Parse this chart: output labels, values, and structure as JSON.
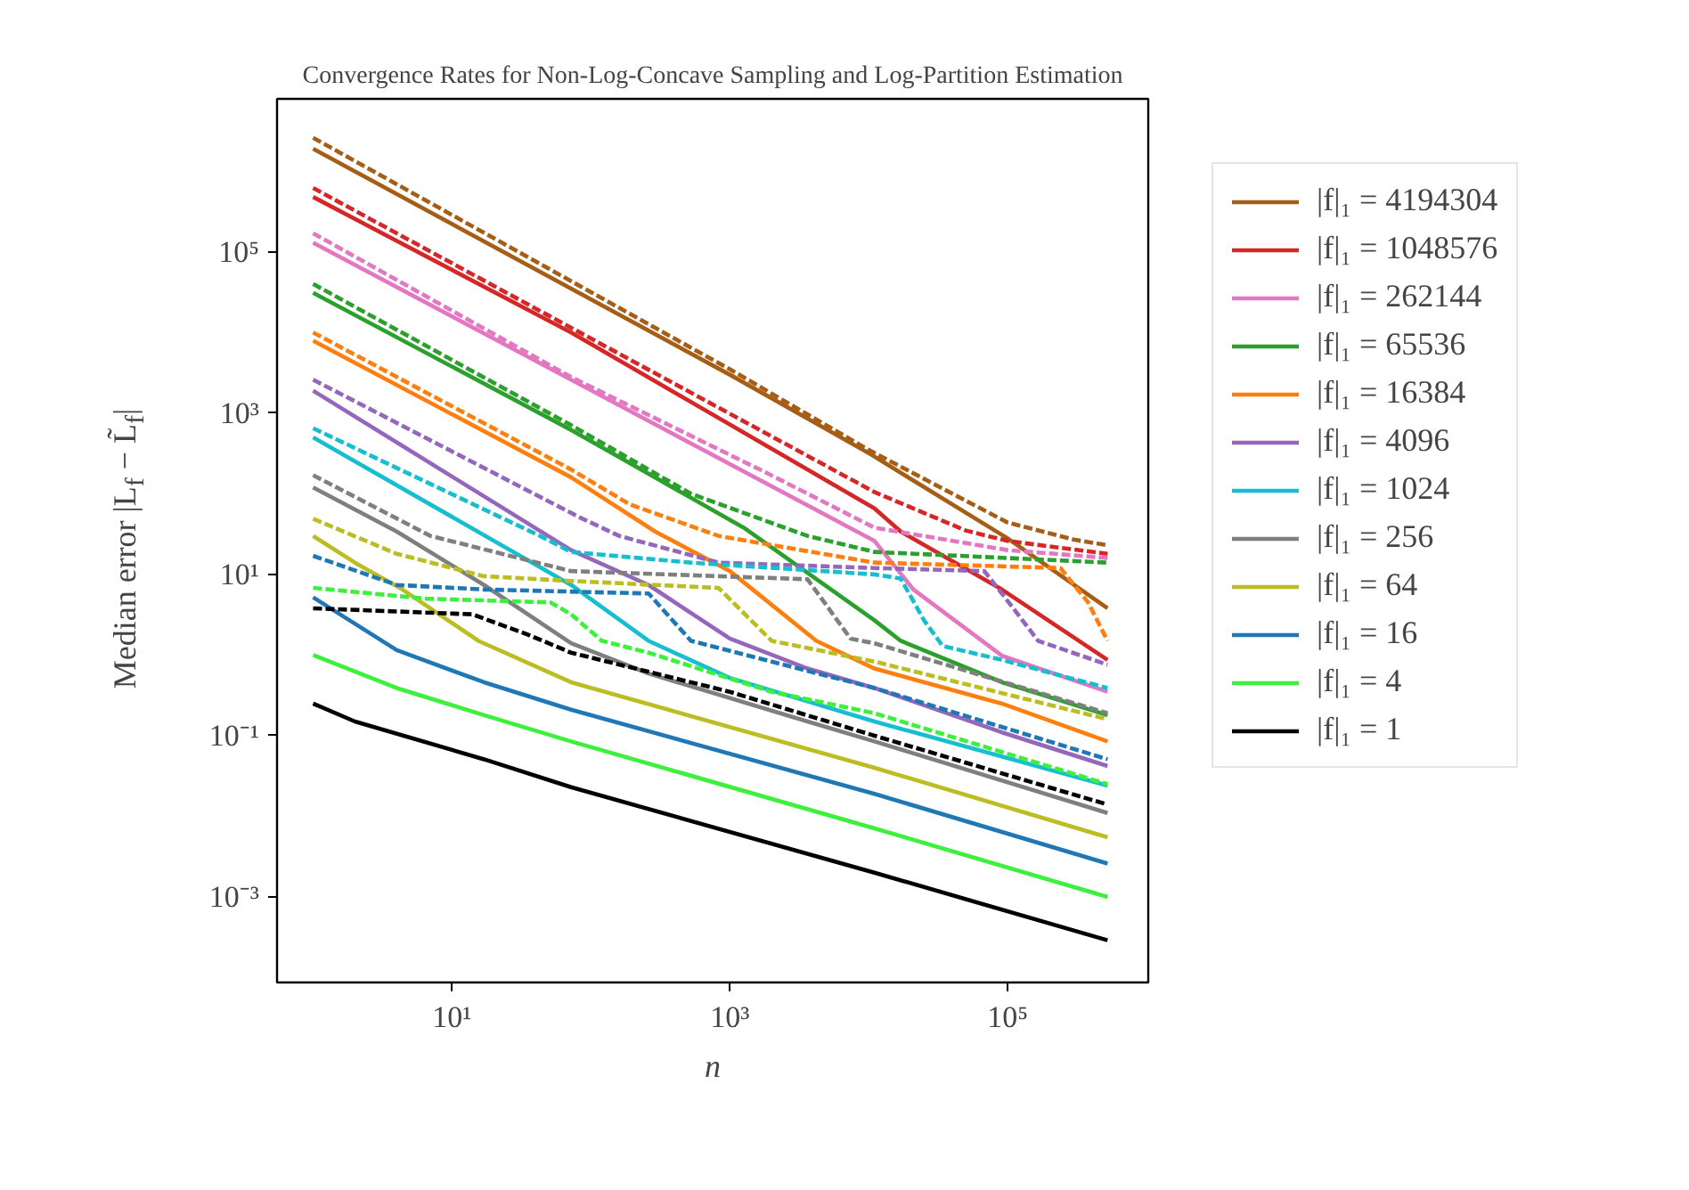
{
  "chart_data": {
    "type": "line",
    "title": "Convergence Rates for Non-Log-Concave Sampling and Log-Partition Estimation",
    "xlabel": "n",
    "ylabel": "Median error |L$_{f}$ − L̃$_{f}$|",
    "log": "xy",
    "grid": false,
    "legend": "right",
    "xlim": [
      0.55,
      1030000
    ],
    "ylim": [
      8.7e-05,
      7900000
    ],
    "xticks": [
      {
        "value": 10,
        "label": "10¹"
      },
      {
        "value": 1000,
        "label": "10³"
      },
      {
        "value": 100000,
        "label": "10⁵"
      }
    ],
    "yticks": [
      {
        "value": 0.001,
        "label": "10⁻³"
      },
      {
        "value": 0.1,
        "label": "10⁻¹"
      },
      {
        "value": 10,
        "label": "10¹"
      },
      {
        "value": 1000,
        "label": "10³"
      },
      {
        "value": 100000,
        "label": "10⁵"
      }
    ],
    "series": [
      {
        "name": "|f|₁ = 4194304",
        "color": "#a65e17",
        "line_style": "solid",
        "x": [
          1,
          1000,
          10000,
          100000,
          524288
        ],
        "values": [
          1900000.0,
          3000.0,
          320.0,
          28,
          3.8
        ]
      },
      {
        "color": "#a65e17",
        "line_style": "dashed",
        "x": [
          1,
          1000,
          10000,
          100000,
          300000,
          524288
        ],
        "values": [
          2600000.0,
          3500.0,
          350.0,
          44,
          27,
          23
        ]
      },
      {
        "name": "|f|₁ = 1048576",
        "color": "#d62728",
        "line_style": "solid",
        "x": [
          1,
          72,
          11000,
          17000,
          91000,
          524288
        ],
        "values": [
          480000.0,
          10000.0,
          66,
          34,
          6.5,
          0.87
        ]
      },
      {
        "color": "#d62728",
        "line_style": "dashed",
        "x": [
          1,
          11000,
          50000,
          100000,
          524288
        ],
        "values": [
          620000.0,
          105,
          35,
          26,
          18
        ]
      },
      {
        "name": "|f|₁ = 262144",
        "color": "#e377c2",
        "line_style": "solid",
        "x": [
          1,
          72,
          11000,
          21000,
          91000,
          524288
        ],
        "values": [
          130000.0,
          2600.0,
          26,
          6.5,
          0.98,
          0.35
        ]
      },
      {
        "color": "#e377c2",
        "line_style": "dashed",
        "x": [
          1,
          72,
          1860,
          11000,
          100000,
          524288
        ],
        "values": [
          170000.0,
          2800.0,
          180,
          38,
          20,
          16
        ]
      },
      {
        "name": "|f|₁ = 65536",
        "color": "#2ca02c",
        "line_style": "solid",
        "x": [
          1,
          72,
          1260,
          11000,
          17000,
          91000,
          524288
        ],
        "values": [
          31000.0,
          620,
          38,
          2.7,
          1.5,
          0.46,
          0.18
        ]
      },
      {
        "color": "#2ca02c",
        "line_style": "dashed",
        "x": [
          1,
          72,
          525,
          3630,
          11000,
          524288
        ],
        "values": [
          40000.0,
          710,
          100,
          30,
          19,
          14
        ]
      },
      {
        "name": "|f|₁ = 16384",
        "color": "#ff7f0e",
        "line_style": "solid",
        "x": [
          1,
          72,
          290,
          1000,
          4200,
          11000,
          91000,
          524288
        ],
        "values": [
          7900.0,
          160,
          34,
          11,
          1.5,
          0.68,
          0.25,
          0.085
        ]
      },
      {
        "color": "#ff7f0e",
        "line_style": "dashed",
        "x": [
          1,
          72,
          190,
          830,
          11000,
          240000,
          380000,
          524288
        ],
        "values": [
          10000.0,
          200,
          74,
          30,
          14,
          12,
          4.5,
          1.5
        ]
      },
      {
        "name": "|f|₁ = 4096",
        "color": "#9467bd",
        "line_style": "solid",
        "x": [
          1,
          72,
          260,
          1000,
          3630,
          11000,
          91000,
          524288
        ],
        "values": [
          1900.0,
          20,
          7.4,
          1.6,
          0.68,
          0.39,
          0.11,
          0.042
        ]
      },
      {
        "color": "#9467bd",
        "line_style": "dashed",
        "x": [
          1,
          83,
          160,
          830,
          11000,
          68000,
          110000,
          166000,
          524288
        ],
        "values": [
          2600.0,
          51,
          30,
          14,
          12,
          11,
          3.8,
          1.5,
          0.76
        ]
      },
      {
        "name": "|f|₁ = 1024",
        "color": "#17becf",
        "line_style": "solid",
        "x": [
          1,
          72,
          260,
          1000,
          11000,
          524288
        ],
        "values": [
          500,
          7.4,
          1.5,
          0.52,
          0.15,
          0.024
        ]
      },
      {
        "color": "#17becf",
        "line_style": "dashed",
        "x": [
          1,
          43,
          72,
          525,
          11000,
          17000,
          25000,
          34000,
          91000,
          524288
        ],
        "values": [
          650,
          30,
          19,
          14,
          10,
          8.9,
          2.7,
          1.3,
          0.87,
          0.39
        ]
      },
      {
        "name": "|f|₁ = 256",
        "color": "#7f7f7f",
        "line_style": "solid",
        "x": [
          1,
          4,
          17,
          72,
          260,
          3630,
          11000,
          524288
        ],
        "values": [
          120,
          34,
          7.4,
          1.4,
          0.59,
          0.15,
          0.085,
          0.011
        ]
      },
      {
        "color": "#7f7f7f",
        "line_style": "dashed",
        "x": [
          1,
          7,
          72,
          3630,
          7400,
          11000,
          524288
        ],
        "values": [
          170,
          30,
          11,
          8.7,
          1.6,
          1.4,
          0.19
        ]
      },
      {
        "name": "|f|₁ = 64",
        "color": "#bcbd22",
        "line_style": "solid",
        "x": [
          1,
          2,
          4.4,
          15.5,
          72,
          11000,
          524288
        ],
        "values": [
          30,
          14,
          6.5,
          1.5,
          0.46,
          0.04,
          0.0055
        ]
      },
      {
        "color": "#bcbd22",
        "line_style": "dashed",
        "x": [
          1,
          4,
          17,
          72,
          830,
          2000,
          11000,
          524288
        ],
        "values": [
          49,
          18,
          9.5,
          8.3,
          6.8,
          1.5,
          0.83,
          0.16
        ]
      },
      {
        "name": "|f|₁ = 16",
        "color": "#1f77b4",
        "line_style": "solid",
        "x": [
          1,
          4,
          17,
          72,
          11000,
          524288
        ],
        "values": [
          5.2,
          1.15,
          0.46,
          0.21,
          0.019,
          0.0026
        ]
      },
      {
        "color": "#1f77b4",
        "line_style": "dashed",
        "x": [
          1,
          4,
          17,
          260,
          525,
          2000,
          11000,
          524288
        ],
        "values": [
          17,
          7.4,
          6.5,
          5.8,
          1.5,
          0.83,
          0.39,
          0.051
        ]
      },
      {
        "name": "|f|₁ = 4",
        "color": "#3cf03c",
        "line_style": "solid",
        "x": [
          1,
          4,
          17,
          72,
          11000,
          524288
        ],
        "values": [
          1.0,
          0.39,
          0.18,
          0.085,
          0.0071,
          0.001
        ]
      },
      {
        "color": "#3cf03c",
        "line_style": "dashed",
        "x": [
          1,
          6.5,
          51,
          72,
          120,
          260,
          2000,
          11000,
          524288
        ],
        "values": [
          6.8,
          5.0,
          4.5,
          3.2,
          1.5,
          1.07,
          0.35,
          0.19,
          0.025
        ]
      },
      {
        "name": "|f|₁ = 1",
        "color": "#000000",
        "line_style": "solid",
        "x": [
          1,
          2,
          17,
          72,
          11000,
          524288
        ],
        "values": [
          0.25,
          0.15,
          0.051,
          0.023,
          0.002,
          0.00029
        ]
      },
      {
        "color": "#000000",
        "line_style": "dashed",
        "x": [
          1,
          14,
          35,
          72,
          1000,
          11000,
          524288
        ],
        "values": [
          3.8,
          3.2,
          1.8,
          1.07,
          0.35,
          0.1,
          0.014
        ]
      }
    ]
  }
}
